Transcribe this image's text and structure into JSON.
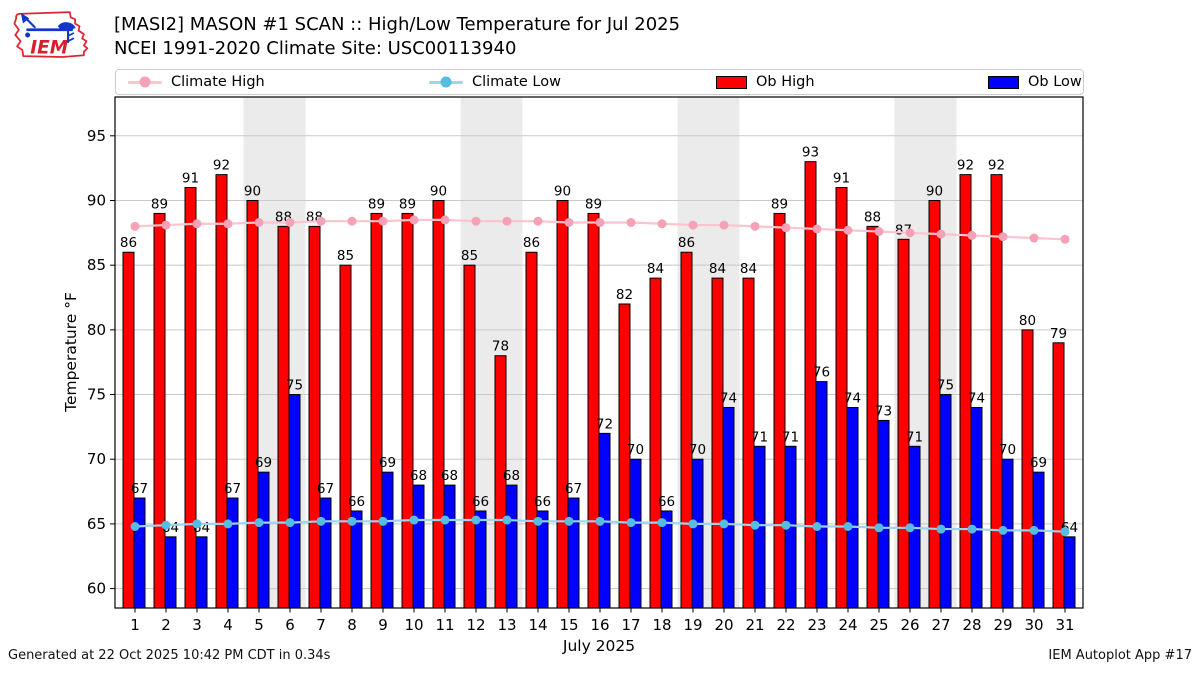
{
  "header": {
    "logo_text": "IEM",
    "title_line1": "[MASI2] MASON #1 SCAN :: High/Low Temperature for Jul 2025",
    "title_line2": "NCEI 1991-2020 Climate Site: USC00113940"
  },
  "footer": {
    "left": "Generated at 22 Oct 2025 10:42 PM CDT in 0.34s",
    "right": "IEM Autoplot App #17"
  },
  "chart_data": {
    "type": "bar",
    "title": "[MASI2] MASON #1 SCAN :: High/Low Temperature for Jul 2025",
    "subtitle": "NCEI 1991-2020 Climate Site: USC00113940",
    "xlabel": "July 2025",
    "ylabel": "Temperature °F",
    "ylim": [
      58.5,
      98.0
    ],
    "yticks": [
      60,
      65,
      70,
      75,
      80,
      85,
      90,
      95
    ],
    "grid": true,
    "grid_color": "#c9c9c9",
    "band_color": "#ebebeb",
    "weekend_bands": [
      [
        5,
        6
      ],
      [
        12,
        13
      ],
      [
        19,
        20
      ],
      [
        26,
        27
      ]
    ],
    "legend_position": "top",
    "x": [
      1,
      2,
      3,
      4,
      5,
      6,
      7,
      8,
      9,
      10,
      11,
      12,
      13,
      14,
      15,
      16,
      17,
      18,
      19,
      20,
      21,
      22,
      23,
      24,
      25,
      26,
      27,
      28,
      29,
      30,
      31
    ],
    "series": [
      {
        "name": "Climate High",
        "type": "line",
        "color": "#f6a2b6",
        "line_color": "#fbc4d0",
        "values": [
          88.0,
          88.1,
          88.2,
          88.2,
          88.3,
          88.3,
          88.4,
          88.4,
          88.4,
          88.5,
          88.5,
          88.4,
          88.4,
          88.4,
          88.3,
          88.3,
          88.3,
          88.2,
          88.1,
          88.1,
          88.0,
          87.9,
          87.8,
          87.7,
          87.6,
          87.5,
          87.4,
          87.3,
          87.2,
          87.1,
          87.0
        ]
      },
      {
        "name": "Climate Low",
        "type": "line",
        "color": "#57bce2",
        "line_color": "#9bd5ee",
        "values": [
          64.8,
          64.9,
          65.0,
          65.0,
          65.1,
          65.1,
          65.2,
          65.2,
          65.2,
          65.3,
          65.3,
          65.3,
          65.3,
          65.2,
          65.2,
          65.2,
          65.1,
          65.1,
          65.0,
          65.0,
          64.9,
          64.9,
          64.8,
          64.8,
          64.7,
          64.7,
          64.6,
          64.6,
          64.5,
          64.5,
          64.4
        ]
      },
      {
        "name": "Ob High",
        "type": "bar",
        "color": "#ff0000",
        "values": [
          86,
          89,
          91,
          92,
          90,
          88,
          88,
          85,
          89,
          89,
          90,
          85,
          78,
          86,
          90,
          89,
          82,
          84,
          86,
          84,
          84,
          89,
          93,
          91,
          88,
          87,
          90,
          92,
          92,
          80,
          79
        ]
      },
      {
        "name": "Ob Low",
        "type": "bar",
        "color": "#0000ff",
        "values": [
          67,
          64,
          64,
          67,
          69,
          75,
          67,
          66,
          69,
          68,
          68,
          66,
          68,
          66,
          67,
          72,
          70,
          66,
          70,
          74,
          71,
          71,
          76,
          74,
          73,
          71,
          75,
          74,
          70,
          69,
          64
        ]
      }
    ]
  }
}
